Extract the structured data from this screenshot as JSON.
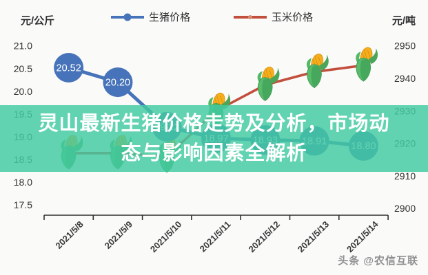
{
  "header": {
    "left_unit": "元/公斤",
    "right_unit": "元/吨"
  },
  "legend": [
    {
      "label": "生猪价格",
      "color": "#4673b9",
      "marker": "line-dot"
    },
    {
      "label": "玉米价格",
      "color": "#c24f3c",
      "marker": "line-dash"
    }
  ],
  "banner": {
    "line1": "灵山最新生猪价格走势及分析，市场动",
    "line2": "态与影响因素全解析",
    "bg_rgba": "rgba(67,203,162,0.84)",
    "text_color": "#ffffff"
  },
  "watermark": {
    "text": "头条 @农信互联"
  },
  "chart_data": {
    "type": "line",
    "categories": [
      "2021/5/8",
      "2021/5/9",
      "2021/5/10",
      "2021/5/11",
      "2021/5/12",
      "2021/5/13",
      "2021/5/14"
    ],
    "series": [
      {
        "name": "生猪价格",
        "axis": "left",
        "unit": "元/公斤",
        "color": "#4673b9",
        "marker": "labeled-circle",
        "values": [
          20.52,
          20.2,
          19.22,
          18.97,
          18.93,
          18.91,
          18.8
        ],
        "point_labels": [
          "20.52",
          "20.20",
          "19.22",
          "18.97",
          "18.93",
          "18.91",
          "18.80"
        ]
      },
      {
        "name": "玉米价格",
        "axis": "right",
        "unit": "元/吨",
        "color": "#c24f3c",
        "marker": "corn-icon",
        "values": [
          2917,
          2917,
          2916,
          2930,
          2938,
          2942,
          2944
        ]
      }
    ],
    "left_axis": {
      "min": 17.5,
      "max": 21.0,
      "step": 0.5,
      "ticks": [
        "21.0",
        "20.5",
        "20.0",
        "19.5",
        "19.0",
        "18.5",
        "18.0",
        "17.5"
      ]
    },
    "right_axis": {
      "min": 2900,
      "max": 2950,
      "step": 10,
      "ticks": [
        "2950",
        "2940",
        "2930",
        "2920",
        "2910",
        "2900"
      ]
    },
    "grid": false,
    "legend_position": "top"
  }
}
